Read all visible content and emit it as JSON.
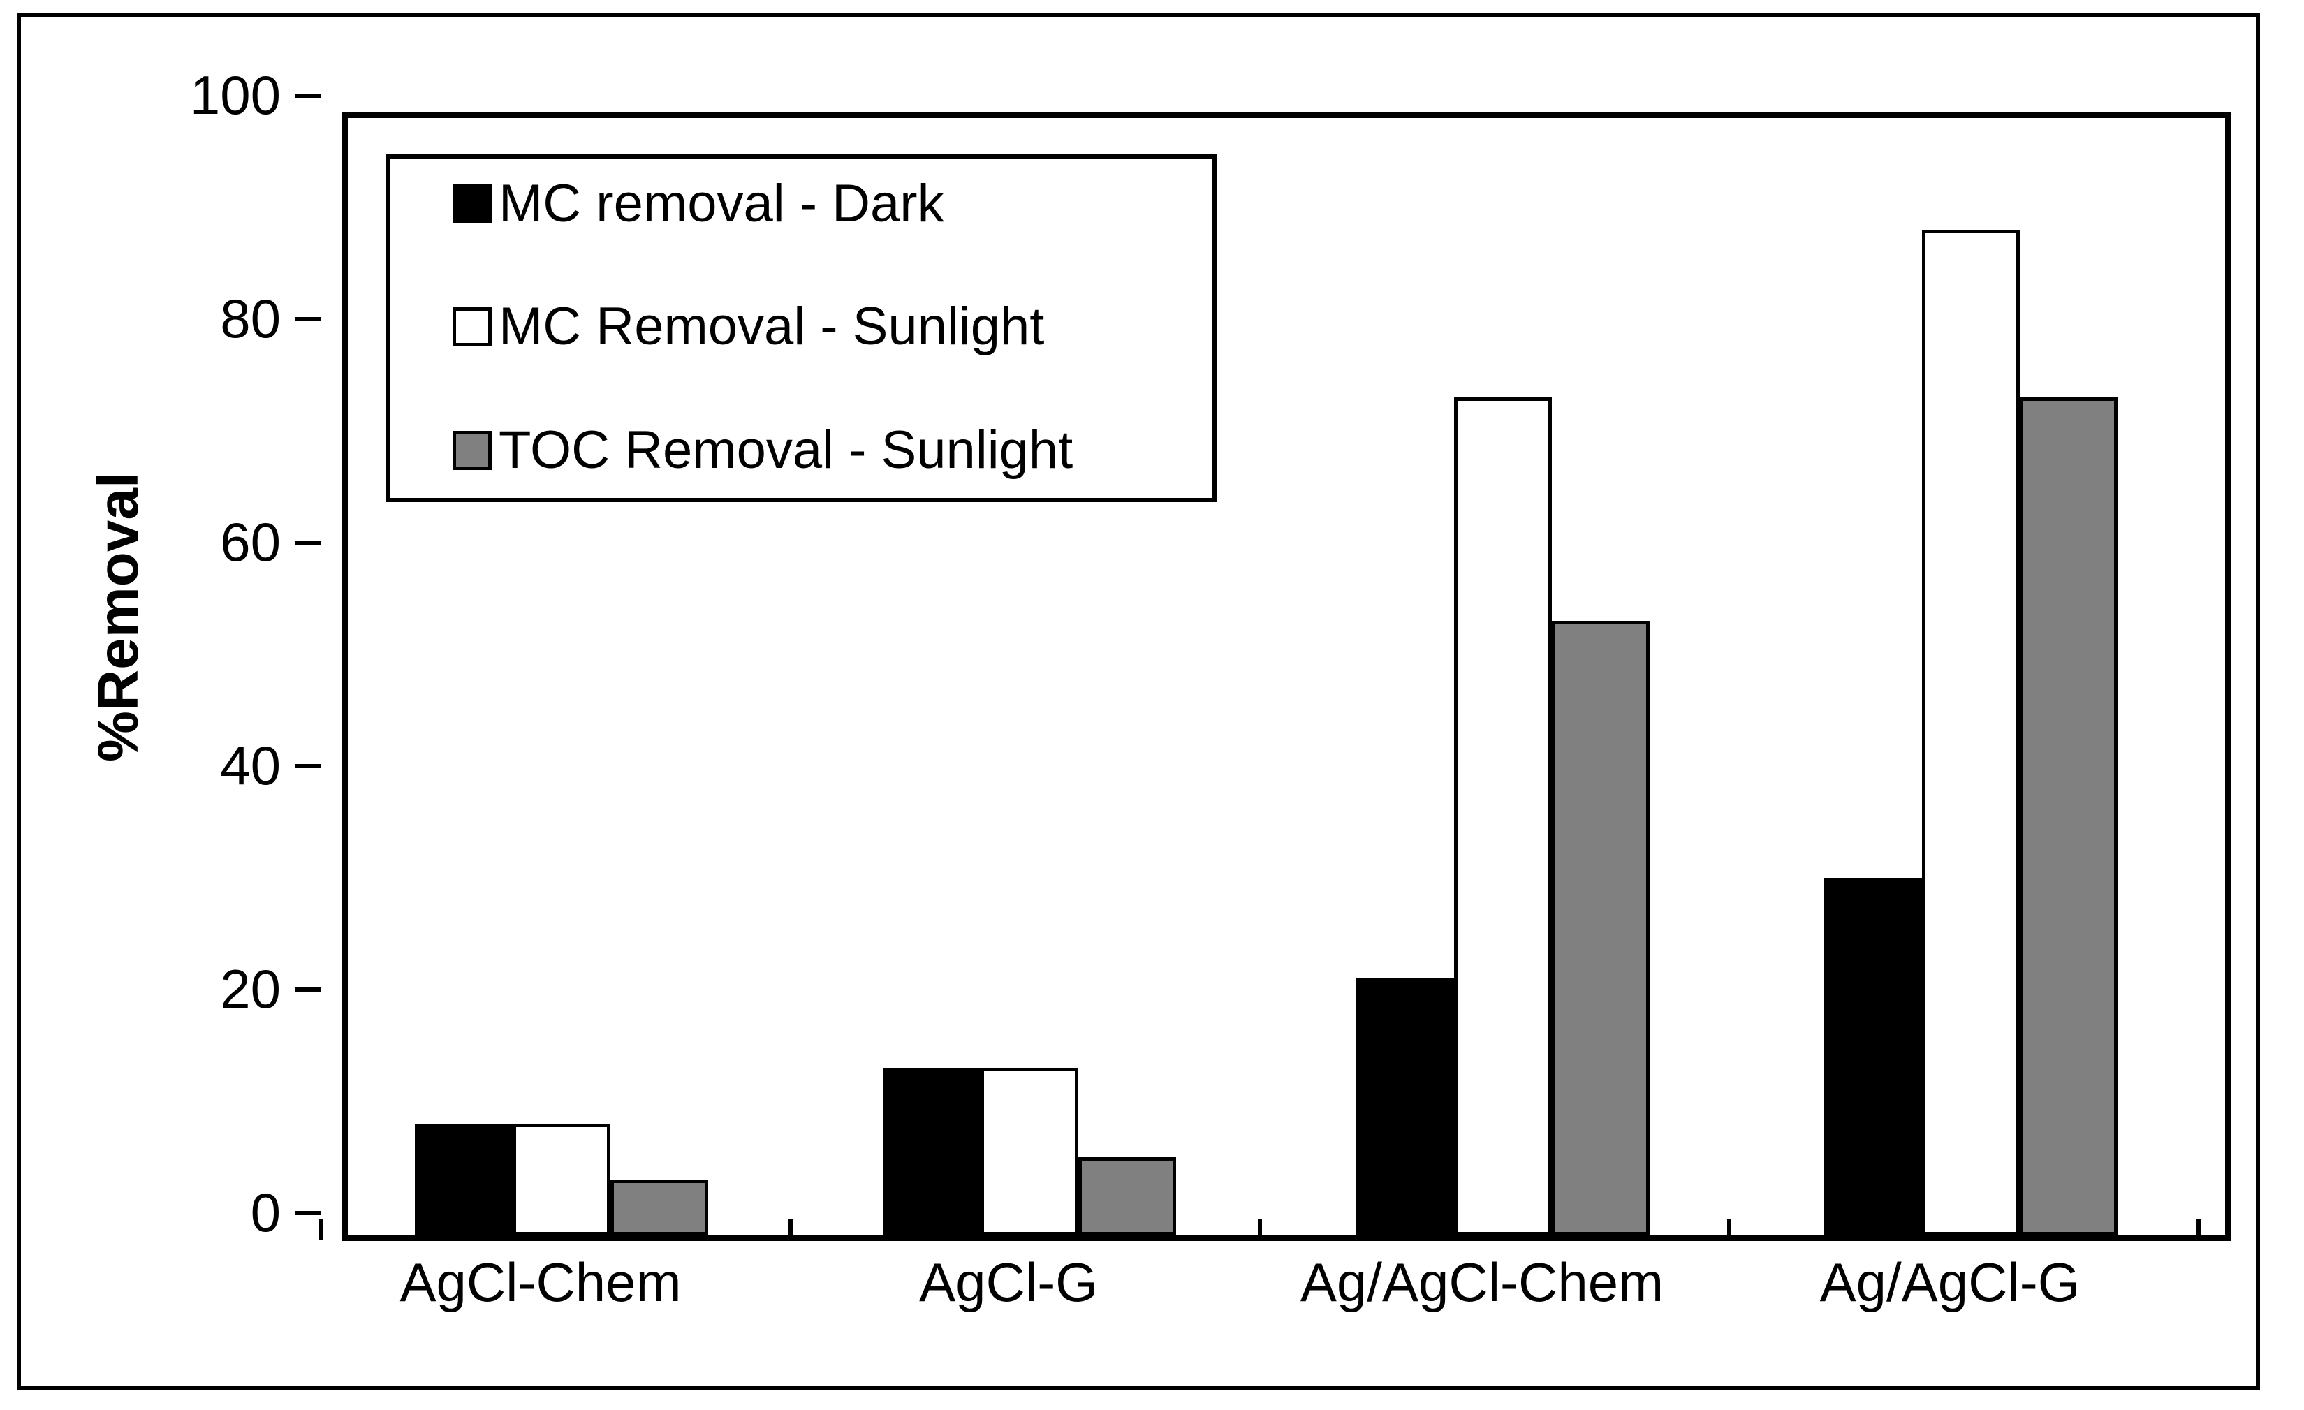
{
  "chart_data": {
    "type": "bar",
    "categories": [
      "AgCl-Chem",
      "AgCl-G",
      "Ag/AgCl-Chem",
      "Ag/AgCl-G"
    ],
    "series": [
      {
        "name": "MC removal - Dark",
        "color": "#000000",
        "values": [
          10,
          15,
          23,
          32
        ]
      },
      {
        "name": "MC Removal - Sunlight",
        "color": "#ffffff",
        "values": [
          10,
          15,
          75,
          90
        ]
      },
      {
        "name": "TOC Removal - Sunlight",
        "color": "#808080",
        "values": [
          5,
          7,
          55,
          75
        ]
      }
    ],
    "title": "",
    "xlabel": "",
    "ylabel": "%Removal",
    "ylim": [
      0,
      100
    ],
    "yticks": [
      0,
      20,
      40,
      60,
      80,
      100
    ],
    "grid": false,
    "legend_position": "top-left-inside",
    "bar_border_color": "#000000",
    "axis_color": "#000000",
    "background_color": "#ffffff"
  }
}
